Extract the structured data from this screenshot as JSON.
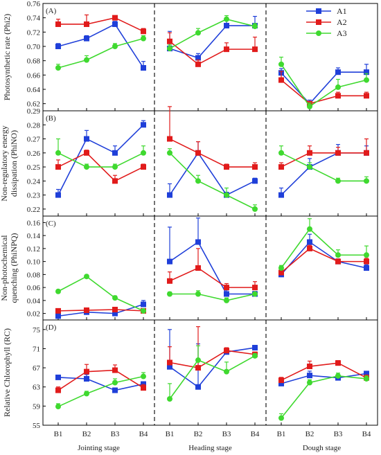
{
  "chart_data": {
    "type": "line",
    "categories": [
      "B1",
      "B2",
      "B3",
      "B4"
    ],
    "stages": [
      "Jointing stage",
      "Heading stage",
      "Dough stage"
    ],
    "legend": [
      "A1",
      "A2",
      "A3"
    ],
    "colors": {
      "A1": "#1f3fd9",
      "A2": "#e11b1b",
      "A3": "#3fd92f"
    },
    "legend_position": "top-right",
    "panels": [
      {
        "tag": "(A)",
        "ylabel": [
          "Photosynthetic rate (Phi2)"
        ],
        "ylim": [
          0.61,
          0.76
        ],
        "yticks": [
          0.62,
          0.64,
          0.66,
          0.68,
          0.7,
          0.72,
          0.74,
          0.76
        ],
        "ytick_labels": [
          "0.62",
          "0.64",
          "0.66",
          "0.68",
          "0.70",
          "0.72",
          "0.74",
          "0.76"
        ],
        "series": [
          {
            "name": "A1",
            "values": [
              [
                0.7,
                0.711,
                0.731,
                0.67
              ],
              [
                0.697,
                0.684,
                0.729,
                0.729
              ],
              [
                0.663,
                0.62,
                0.664,
                0.664
              ]
            ],
            "errors": [
              [
                0.004,
                0.004,
                0.004,
                0.009
              ],
              [
                0.024,
                0.006,
                0.007,
                0.013
              ],
              [
                0.006,
                0.005,
                0.006,
                0.011
              ]
            ]
          },
          {
            "name": "A2",
            "values": [
              [
                0.731,
                0.731,
                0.74,
                0.721
              ],
              [
                0.707,
                0.675,
                0.696,
                0.696
              ],
              [
                0.653,
                0.62,
                0.631,
                0.631
              ]
            ],
            "errors": [
              [
                0.007,
                0.013,
                0.002,
                0.004
              ],
              [
                0.012,
                0.006,
                0.009,
                0.017
              ],
              [
                0.012,
                0.003,
                0.005,
                0.005
              ]
            ]
          },
          {
            "name": "A3",
            "values": [
              [
                0.67,
                0.681,
                0.7,
                0.711
              ],
              [
                0.697,
                0.719,
                0.738,
                0.728
              ],
              [
                0.675,
                0.616,
                0.643,
                0.653
              ]
            ],
            "errors": [
              [
                0.005,
                0.006,
                0.004,
                0.004
              ],
              [
                0.005,
                0.006,
                0.005,
                0.004
              ],
              [
                0.01,
                0.005,
                0.011,
                0.009
              ]
            ]
          }
        ]
      },
      {
        "tag": "(B)",
        "ylabel": [
          "Non-regulatory energy",
          "dissipation (PhiNO)"
        ],
        "ylim": [
          0.215,
          0.29
        ],
        "yticks": [
          0.22,
          0.23,
          0.24,
          0.25,
          0.26,
          0.27,
          0.28,
          0.29
        ],
        "ytick_labels": [
          "0.22",
          "0.23",
          "0.24",
          "0.25",
          "0.26",
          "0.27",
          "0.28",
          "0.29"
        ],
        "series": [
          {
            "name": "A1",
            "values": [
              [
                0.23,
                0.27,
                0.26,
                0.28
              ],
              [
                0.23,
                0.26,
                0.23,
                0.24
              ],
              [
                0.23,
                0.25,
                0.26,
                0.26
              ]
            ],
            "errors": [
              [
                0.004,
                0.006,
                0.005,
                0.003
              ],
              [
                0.008,
                0.008,
                0.002,
                0.002
              ],
              [
                0.005,
                0.006,
                0.006,
                0.005
              ]
            ]
          },
          {
            "name": "A2",
            "values": [
              [
                0.25,
                0.26,
                0.24,
                0.25
              ],
              [
                0.27,
                0.26,
                0.25,
                0.25
              ],
              [
                0.25,
                0.26,
                0.26,
                0.26
              ]
            ],
            "errors": [
              [
                0.005,
                0.002,
                0.004,
                0.002
              ],
              [
                0.023,
                0.008,
                0.002,
                0.003
              ],
              [
                0.003,
                0.005,
                0.004,
                0.01
              ]
            ]
          },
          {
            "name": "A3",
            "values": [
              [
                0.26,
                0.25,
                0.25,
                0.26
              ],
              [
                0.26,
                0.24,
                0.23,
                0.22
              ],
              [
                0.26,
                0.25,
                0.24,
                0.24
              ]
            ],
            "errors": [
              [
                0.01,
                0.002,
                0.002,
                0.005
              ],
              [
                0.003,
                0.004,
                0.005,
                0.003
              ],
              [
                0.005,
                0.003,
                0.002,
                0.003
              ]
            ]
          }
        ]
      },
      {
        "tag": "(C)",
        "ylabel": [
          "Non-photochemical",
          "quenching (PhiNPQ)"
        ],
        "ylim": [
          0.01,
          0.17
        ],
        "yticks": [
          0.02,
          0.04,
          0.06,
          0.08,
          0.1,
          0.12,
          0.14,
          0.16
        ],
        "ytick_labels": [
          "0.02",
          "0.04",
          "0.06",
          "0.08",
          "0.10",
          "0.12",
          "0.14",
          "0.16"
        ],
        "series": [
          {
            "name": "A1",
            "values": [
              [
                0.016,
                0.022,
                0.02,
                0.034
              ],
              [
                0.1,
                0.13,
                0.05,
                0.05
              ],
              [
                0.08,
                0.13,
                0.1,
                0.09
              ]
            ],
            "errors": [
              [
                0.002,
                0.003,
                0.002,
                0.006
              ],
              [
                0.053,
                0.037,
                0.006,
                0.004
              ],
              [
                0.004,
                0.012,
                0.004,
                0.005
              ]
            ]
          },
          {
            "name": "A2",
            "values": [
              [
                0.024,
                0.025,
                0.026,
                0.024
              ],
              [
                0.07,
                0.09,
                0.06,
                0.06
              ],
              [
                0.083,
                0.12,
                0.1,
                0.1
              ]
            ],
            "errors": [
              [
                0.002,
                0.002,
                0.002,
                0.002
              ],
              [
                0.014,
                0.03,
                0.006,
                0.009
              ],
              [
                0.003,
                0.005,
                0.004,
                0.005
              ]
            ]
          },
          {
            "name": "A3",
            "values": [
              [
                0.054,
                0.077,
                0.044,
                0.024
              ],
              [
                0.05,
                0.05,
                0.04,
                0.05
              ],
              [
                0.09,
                0.15,
                0.11,
                0.11
              ]
            ],
            "errors": [
              [
                0.002,
                0.002,
                0.003,
                0.002
              ],
              [
                0.003,
                0.005,
                0.004,
                0.002
              ],
              [
                0.004,
                0.016,
                0.008,
                0.014
              ]
            ]
          }
        ]
      },
      {
        "tag": "(D)",
        "ylabel": [
          "Relative Chlorophyll (RC)"
        ],
        "ylim": [
          55,
          77
        ],
        "yticks": [
          55,
          59,
          63,
          67,
          71,
          75
        ],
        "ytick_labels": [
          "55",
          "59",
          "63",
          "67",
          "71",
          "75"
        ],
        "series": [
          {
            "name": "A1",
            "values": [
              [
                65.0,
                64.7,
                62.3,
                63.6
              ],
              [
                67.2,
                63.0,
                70.3,
                71.2
              ],
              [
                63.7,
                65.4,
                64.9,
                65.8
              ]
            ],
            "errors": [
              [
                0.3,
                0.9,
                0.5,
                0.5
              ],
              [
                7.8,
                9.0,
                0.7,
                0.5
              ],
              [
                0.6,
                0.9,
                0.5,
                0.4
              ]
            ]
          },
          {
            "name": "A2",
            "values": [
              [
                62.3,
                66.2,
                66.5,
                62.8
              ],
              [
                68.1,
                67.0,
                70.6,
                69.8
              ],
              [
                64.4,
                67.3,
                68.0,
                64.9
              ]
            ],
            "errors": [
              [
                0.7,
                1.5,
                1.1,
                0.7
              ],
              [
                3.3,
                8.6,
                0.6,
                0.5
              ],
              [
                0.6,
                1.1,
                0.5,
                0.6
              ]
            ]
          },
          {
            "name": "A3",
            "values": [
              [
                58.9,
                61.6,
                63.9,
                65.2
              ],
              [
                60.5,
                68.6,
                66.2,
                69.5
              ],
              [
                56.5,
                63.9,
                65.3,
                64.7
              ]
            ],
            "errors": [
              [
                0.6,
                0.5,
                0.8,
                0.8
              ],
              [
                3.2,
                3.0,
                2.0,
                0.5
              ],
              [
                0.9,
                0.6,
                0.6,
                0.6
              ]
            ]
          }
        ]
      }
    ]
  }
}
